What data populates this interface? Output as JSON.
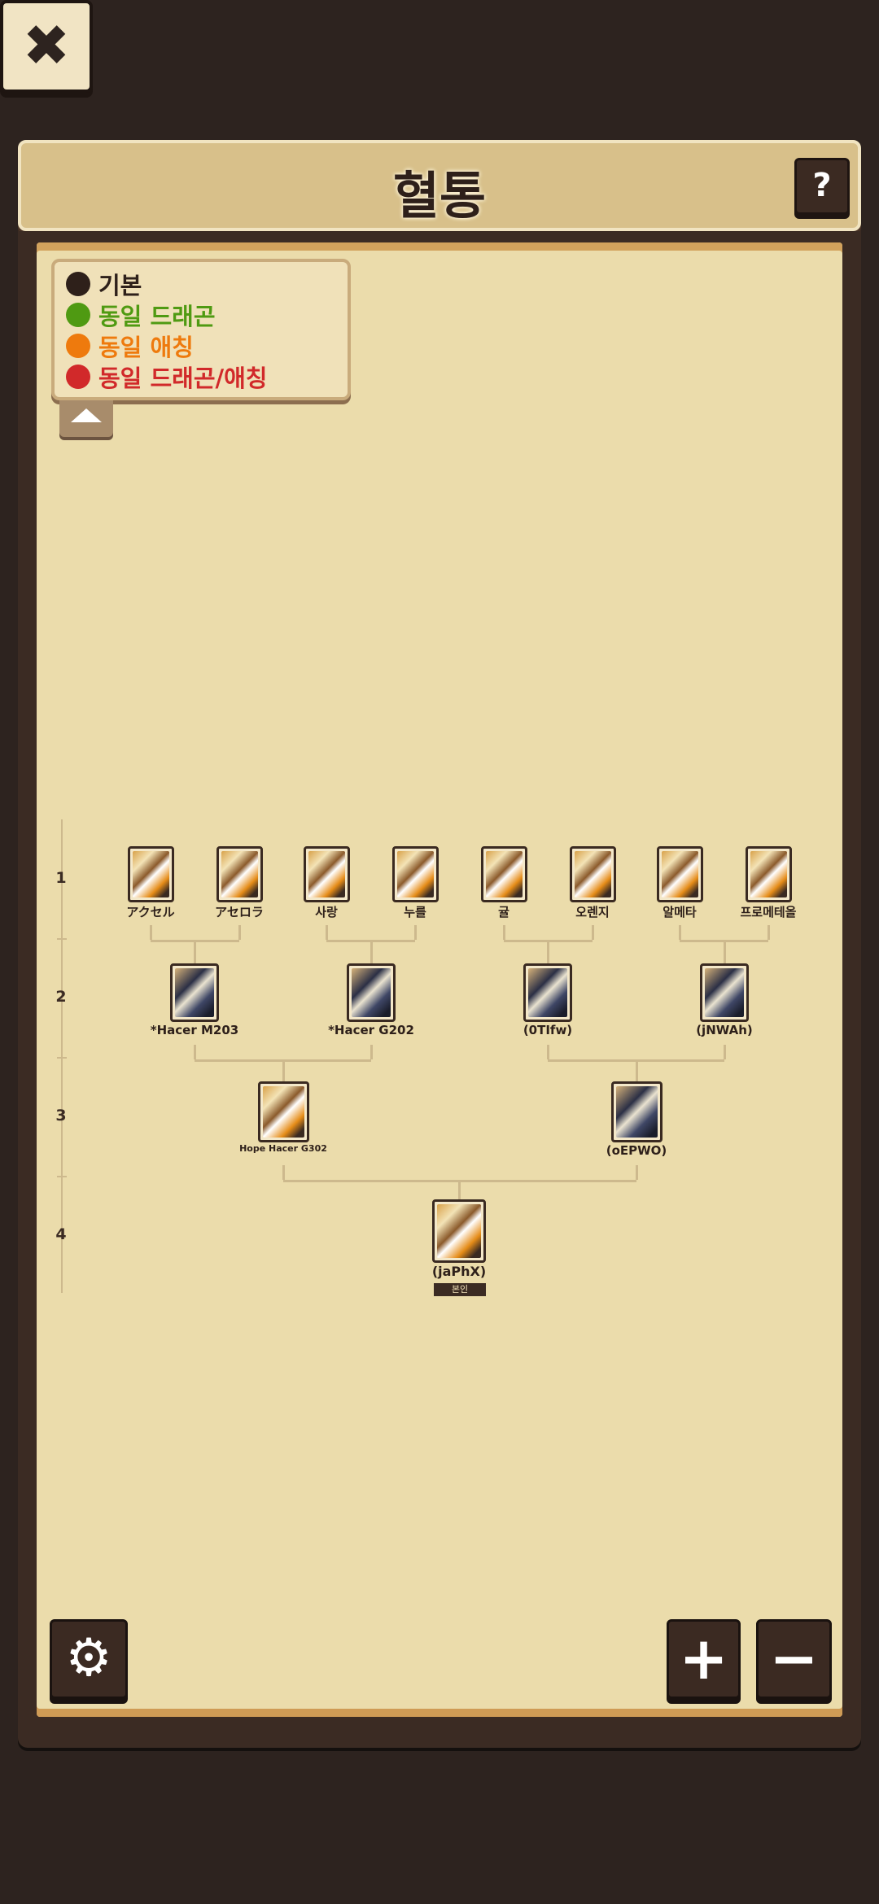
{
  "header": {
    "title": "혈통",
    "help_label": "?"
  },
  "legend": {
    "items": [
      {
        "label": "기본",
        "color": "#2e201a"
      },
      {
        "label": "동일 드래곤",
        "color": "#4f9a12"
      },
      {
        "label": "동일 애칭",
        "color": "#ee7a0d"
      },
      {
        "label": "동일 드래곤/애칭",
        "color": "#d1292a"
      }
    ],
    "toggle_icon": "chevron-up-icon"
  },
  "generations": [
    "1",
    "2",
    "3",
    "4"
  ],
  "tree": {
    "gen1": [
      {
        "name": "アクセル",
        "style": "gold"
      },
      {
        "name": "アセロラ",
        "style": "gold"
      },
      {
        "name": "사랑",
        "style": "gold"
      },
      {
        "name": "누를",
        "style": "gold"
      },
      {
        "name": "귤",
        "style": "gold"
      },
      {
        "name": "오렌지",
        "style": "gold"
      },
      {
        "name": "알메타",
        "style": "gold"
      },
      {
        "name": "프로메테올",
        "style": "gold"
      }
    ],
    "gen2": [
      {
        "name": "*Hacer M203",
        "style": "dark"
      },
      {
        "name": "*Hacer G202",
        "style": "dark"
      },
      {
        "name": "(0TIfw)",
        "style": "dark"
      },
      {
        "name": "(jNWAh)",
        "style": "dark"
      }
    ],
    "gen3": [
      {
        "name": "Hope Hacer G302",
        "style": "gold"
      },
      {
        "name": "(oEPWO)",
        "style": "dark"
      }
    ],
    "gen4": [
      {
        "name": "(jaPhX)",
        "style": "gold",
        "badge": "본인"
      }
    ]
  },
  "controls": {
    "settings_icon": "gear-icon",
    "zoom_in_label": "+",
    "zoom_out_label": "−",
    "close_label": "✖"
  }
}
